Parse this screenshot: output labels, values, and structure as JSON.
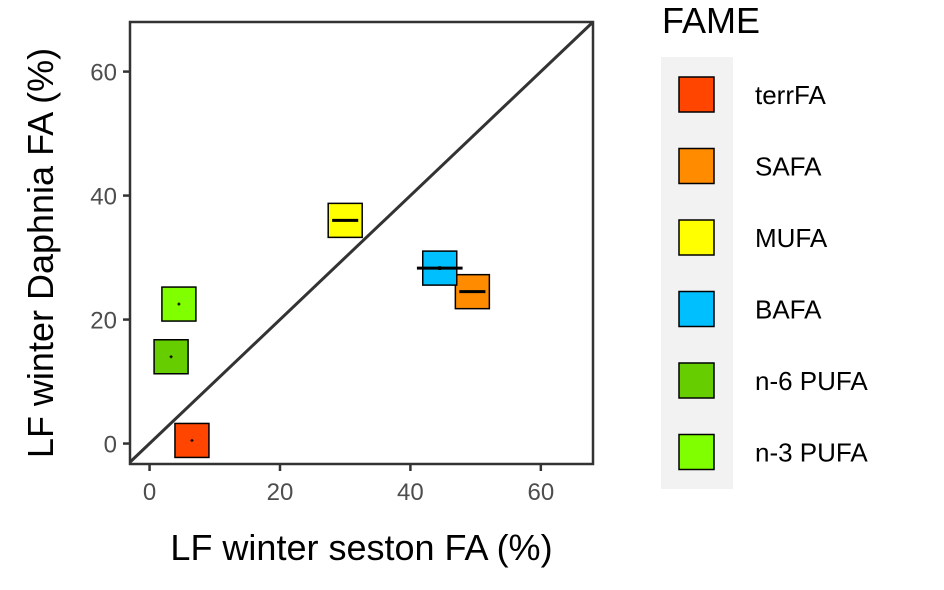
{
  "chart_data": {
    "type": "scatter",
    "title": "",
    "xlabel": "LF winter seston FA (%)",
    "ylabel": "LF winter Daphnia FA (%)",
    "xlim": [
      -3,
      68
    ],
    "ylim": [
      -3.3,
      68
    ],
    "x_ticks": [
      0,
      20,
      40,
      60
    ],
    "y_ticks": [
      0,
      20,
      40,
      60
    ],
    "grid": false,
    "reference_line": "1:1",
    "legend": {
      "title": "FAME",
      "placement": "right"
    },
    "series": [
      {
        "name": "terrFA",
        "color": "#FF4500",
        "x": 6.5,
        "y": 0.5,
        "x_err": 0.1,
        "y_err": 0.1
      },
      {
        "name": "SAFA",
        "color": "#FF8C00",
        "x": 49.5,
        "y": 24.5,
        "x_err": 2.0,
        "y_err": 0.2
      },
      {
        "name": "MUFA",
        "color": "#FFFF00",
        "x": 30.0,
        "y": 36.0,
        "x_err": 2.0,
        "y_err": 0.2
      },
      {
        "name": "BAFA",
        "color": "#00BFFF",
        "x": 44.5,
        "y": 28.3,
        "x_err": 3.5,
        "y_err": 0.3
      },
      {
        "name": "n-6 PUFA",
        "color": "#66CD00",
        "x": 3.3,
        "y": 14.0,
        "x_err": 0.1,
        "y_err": 0.1
      },
      {
        "name": "n-3 PUFA",
        "color": "#7FFF00",
        "x": 4.5,
        "y": 22.5,
        "x_err": 0.1,
        "y_err": 0.1
      }
    ]
  }
}
